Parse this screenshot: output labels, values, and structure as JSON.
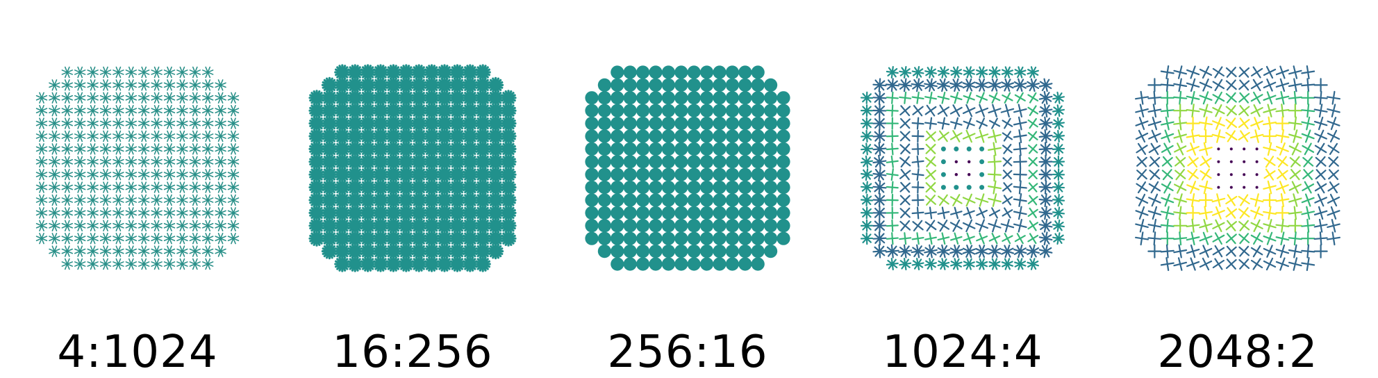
{
  "panels": [
    {
      "label": "4:1024",
      "style": "asterisk",
      "color": "#2a9089"
    },
    {
      "label": "16:256",
      "style": "dense-flower",
      "color": "#21918c"
    },
    {
      "label": "256:16",
      "style": "disc",
      "color": "#21918c"
    },
    {
      "label": "1024:4",
      "style": "cross-rings",
      "color": "#21918c"
    },
    {
      "label": "2048:2",
      "style": "cross-field",
      "color": "#21918c"
    }
  ],
  "colors": {
    "viridis_dark": "#440154",
    "viridis_blue": "#31688e",
    "viridis_teal": "#21918c",
    "viridis_green": "#35b779",
    "viridis_lime": "#90d743",
    "viridis_yellow": "#fde725"
  }
}
